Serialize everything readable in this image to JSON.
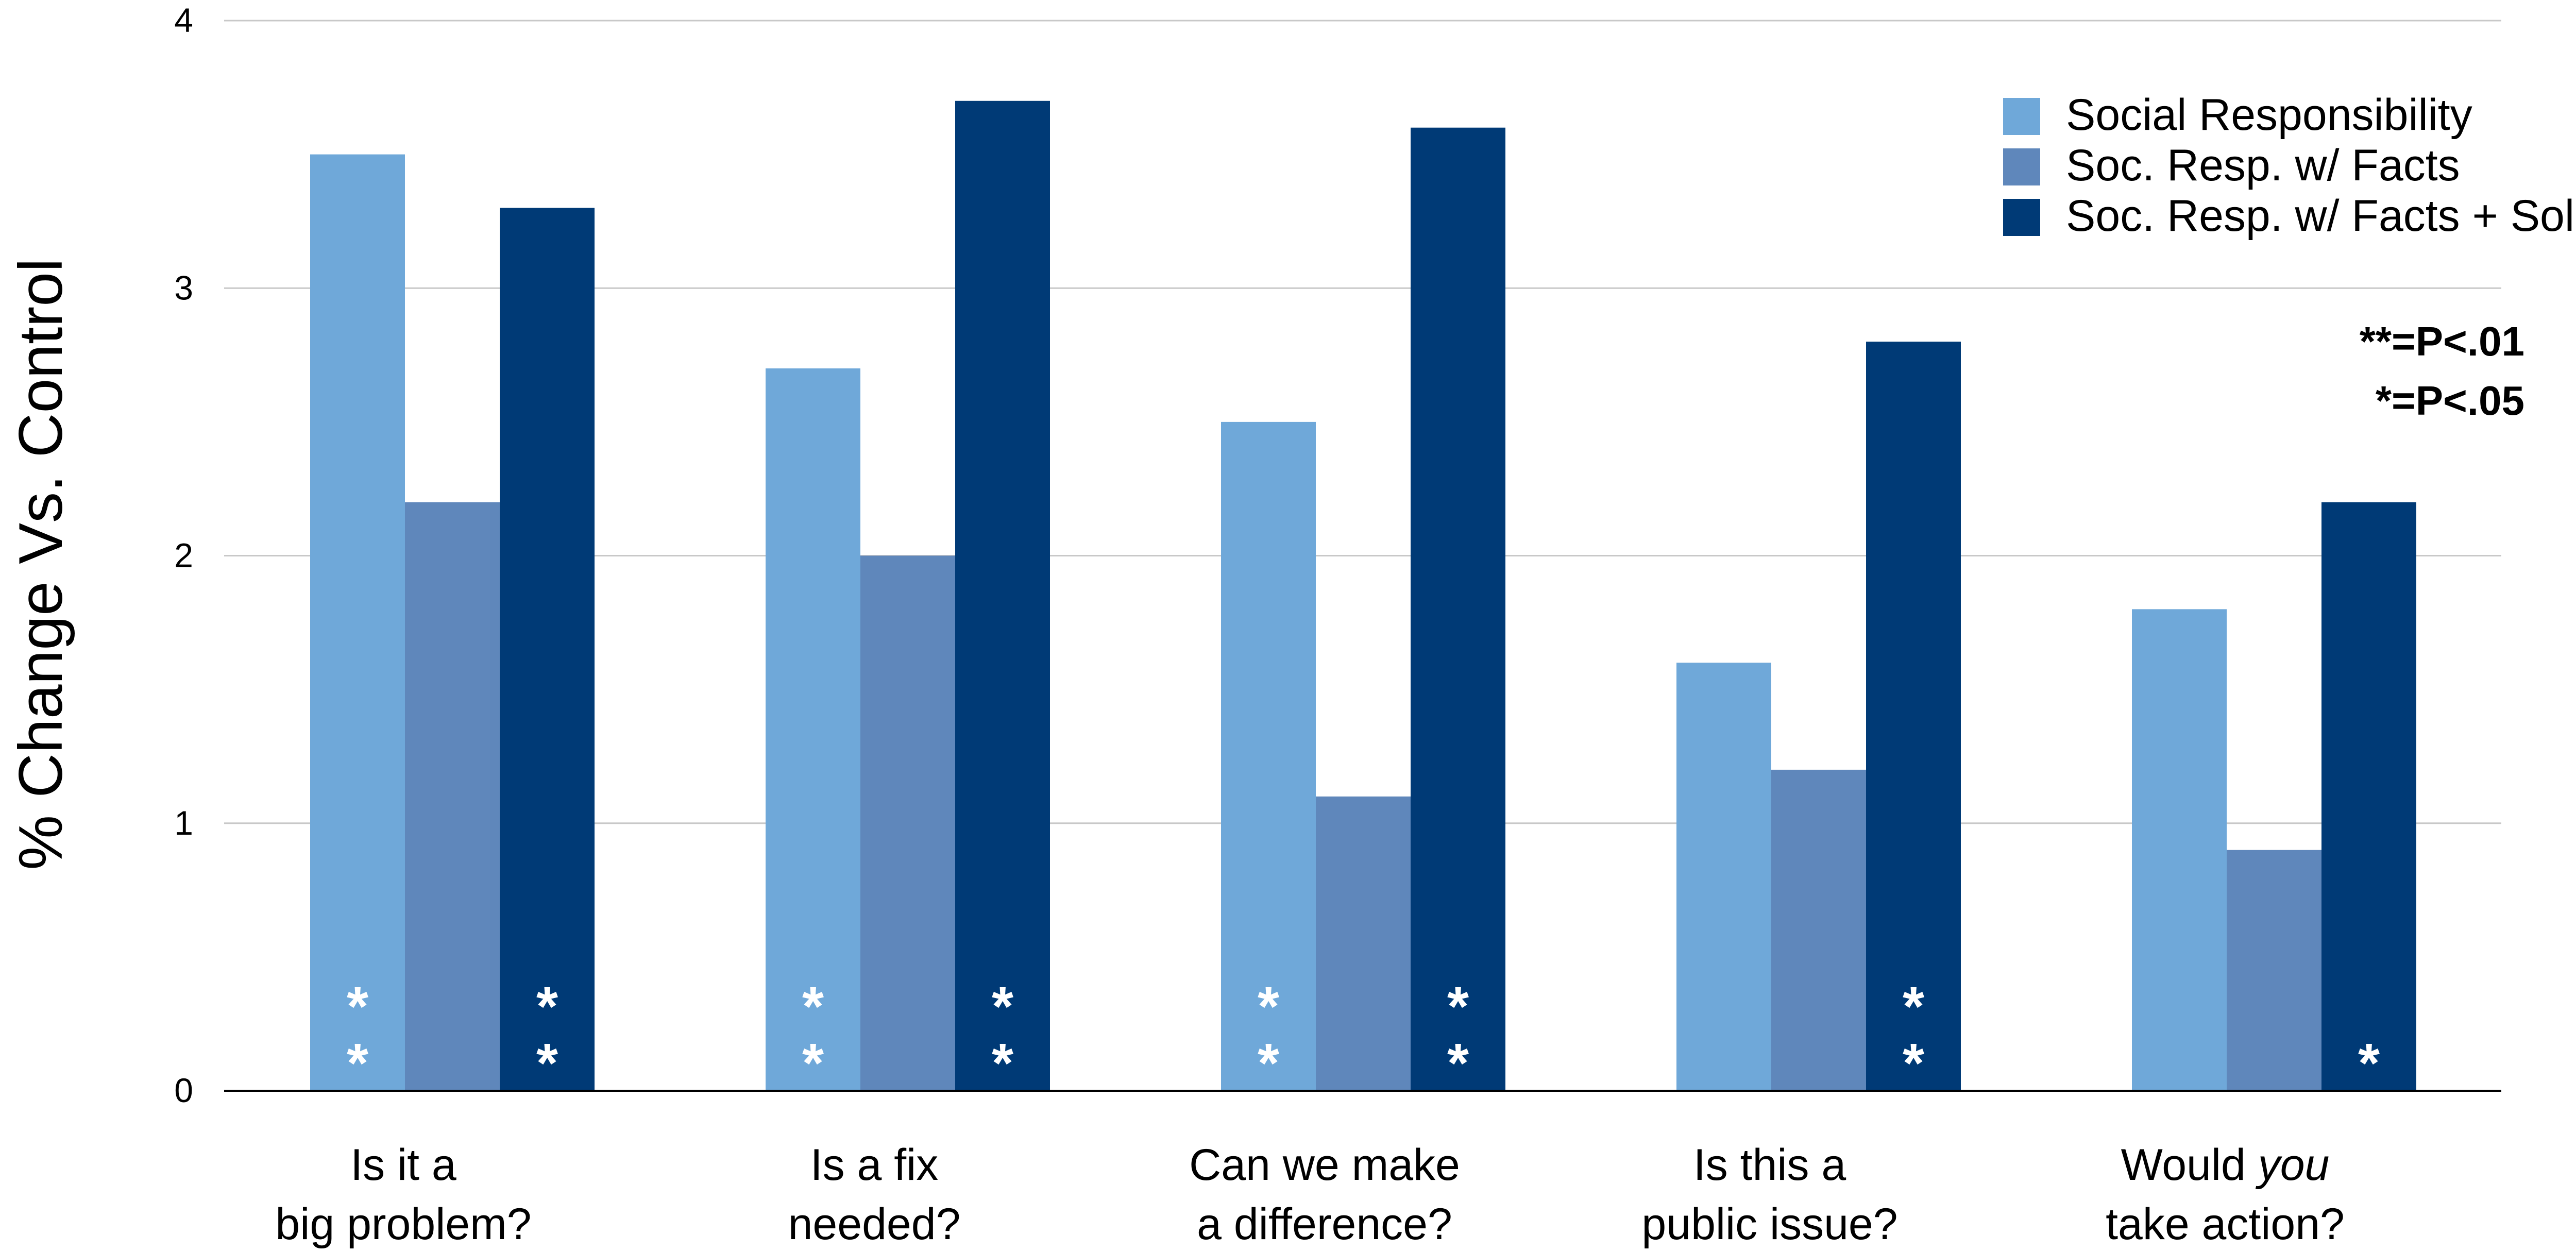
{
  "chart_data": {
    "type": "bar",
    "ylabel": "% Change Vs. Control",
    "xlabel": "",
    "ylim": [
      0,
      4
    ],
    "yticks": [
      "0",
      "1",
      "2",
      "3",
      "4"
    ],
    "grid": true,
    "legend_position": "top-right",
    "categories": [
      [
        "Is it a",
        "big problem?"
      ],
      [
        "Is a fix",
        "needed?"
      ],
      [
        "Can we make",
        "a difference?"
      ],
      [
        "Is this a",
        "public issue?"
      ],
      [
        "Would ",
        "you",
        " take action?"
      ]
    ],
    "series": [
      {
        "name": "Social Responsibility",
        "color": "#6fa8d9",
        "values": [
          3.5,
          2.7,
          2.5,
          1.6,
          1.8
        ],
        "significance": [
          "**",
          "**",
          "**",
          "",
          ""
        ]
      },
      {
        "name": "Soc. Resp. w/ Facts",
        "color": "#5f87bb",
        "values": [
          2.2,
          2.0,
          1.1,
          1.2,
          0.9
        ],
        "significance": [
          "",
          "",
          "",
          "",
          ""
        ]
      },
      {
        "name": "Soc. Resp. w/ Facts + Solu",
        "color": "#003a76",
        "values": [
          3.3,
          3.7,
          3.6,
          2.8,
          2.2
        ],
        "significance": [
          "**",
          "**",
          "**",
          "**",
          "*"
        ]
      }
    ],
    "annotations": [
      "**=P<.01",
      "*=P<.05"
    ]
  }
}
